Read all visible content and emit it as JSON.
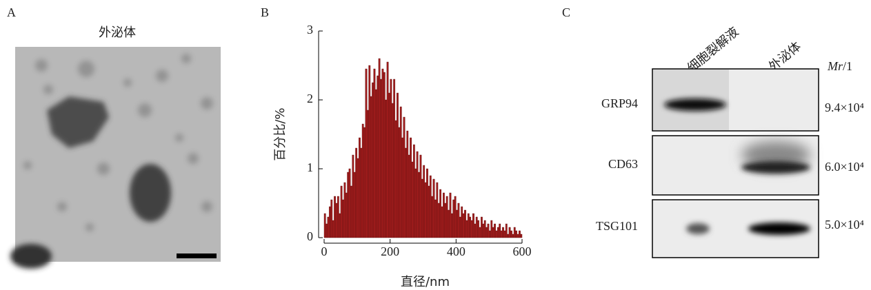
{
  "panels": {
    "a": {
      "label": "A",
      "title": "外泌体"
    },
    "b": {
      "label": "B"
    },
    "c": {
      "label": "C"
    }
  },
  "chart_data": {
    "type": "histogram",
    "x_label": "直径/nm",
    "y_label": "百分比/%",
    "color": "#a01c1c",
    "bins": [
      0,
      5,
      10,
      15,
      20,
      25,
      30,
      35,
      40,
      45,
      50,
      55,
      60,
      65,
      70,
      75,
      80,
      85,
      90,
      95,
      100,
      105,
      110,
      115,
      120,
      125,
      130,
      135,
      140,
      145,
      150,
      155,
      160,
      165,
      170,
      175,
      180,
      185,
      190,
      195,
      200,
      205,
      210,
      215,
      220,
      225,
      230,
      235,
      240,
      245,
      250,
      255,
      260,
      265,
      270,
      275,
      280,
      285,
      290,
      295,
      300,
      305,
      310,
      315,
      320,
      325,
      330,
      335,
      340,
      345,
      350,
      355,
      360,
      365,
      370,
      375,
      380,
      385,
      390,
      395,
      400,
      405,
      410,
      415,
      420,
      425,
      430,
      435,
      440,
      445,
      450,
      455,
      460,
      465,
      470,
      475,
      480,
      485,
      490,
      495,
      500,
      505,
      510,
      515,
      520,
      525,
      530,
      535,
      540,
      545,
      550,
      555,
      560,
      565,
      570,
      575,
      580,
      585,
      590,
      595,
      600
    ],
    "values": [
      0.35,
      0.2,
      0.3,
      0.45,
      0.55,
      0.25,
      0.6,
      0.5,
      0.6,
      0.35,
      0.75,
      0.55,
      0.8,
      0.65,
      0.95,
      1.0,
      0.75,
      1.2,
      0.95,
      1.3,
      1.15,
      1.45,
      1.3,
      1.65,
      1.6,
      2.45,
      1.85,
      2.5,
      2.05,
      2.25,
      2.45,
      2.15,
      2.35,
      2.6,
      2.3,
      2.45,
      2.4,
      2.0,
      2.55,
      2.1,
      2.3,
      1.95,
      2.3,
      1.7,
      2.1,
      1.6,
      1.9,
      1.45,
      1.75,
      1.3,
      1.55,
      1.2,
      1.45,
      1.1,
      1.35,
      1.0,
      1.25,
      0.95,
      1.2,
      0.85,
      1.05,
      0.8,
      1.0,
      0.75,
      0.9,
      0.6,
      0.85,
      0.55,
      0.8,
      0.5,
      0.7,
      0.45,
      0.65,
      0.5,
      0.6,
      0.4,
      0.65,
      0.35,
      0.55,
      0.6,
      0.4,
      0.5,
      0.3,
      0.45,
      0.35,
      0.4,
      0.25,
      0.35,
      0.3,
      0.25,
      0.35,
      0.2,
      0.3,
      0.25,
      0.15,
      0.3,
      0.2,
      0.25,
      0.15,
      0.2,
      0.1,
      0.25,
      0.15,
      0.2,
      0.1,
      0.15,
      0.2,
      0.1,
      0.15,
      0.1,
      0.2,
      0.05,
      0.15,
      0.1,
      0.05,
      0.15,
      0.1,
      0.05,
      0.1,
      0.05
    ],
    "xlim": [
      0,
      600
    ],
    "xticks": [
      0,
      200,
      400,
      600
    ],
    "ylim": [
      0,
      3
    ],
    "yticks": [
      0,
      1,
      2,
      3
    ]
  },
  "blot": {
    "columns": [
      "细胞裂解液",
      "外泌体"
    ],
    "mr_symbol": "Mr",
    "mr_unit": "/1",
    "rows": [
      {
        "name": "GRP94",
        "mass": "9.4×10⁴"
      },
      {
        "name": "CD63",
        "mass": "6.0×10⁴"
      },
      {
        "name": "TSG101",
        "mass": "5.0×10⁴"
      }
    ]
  }
}
